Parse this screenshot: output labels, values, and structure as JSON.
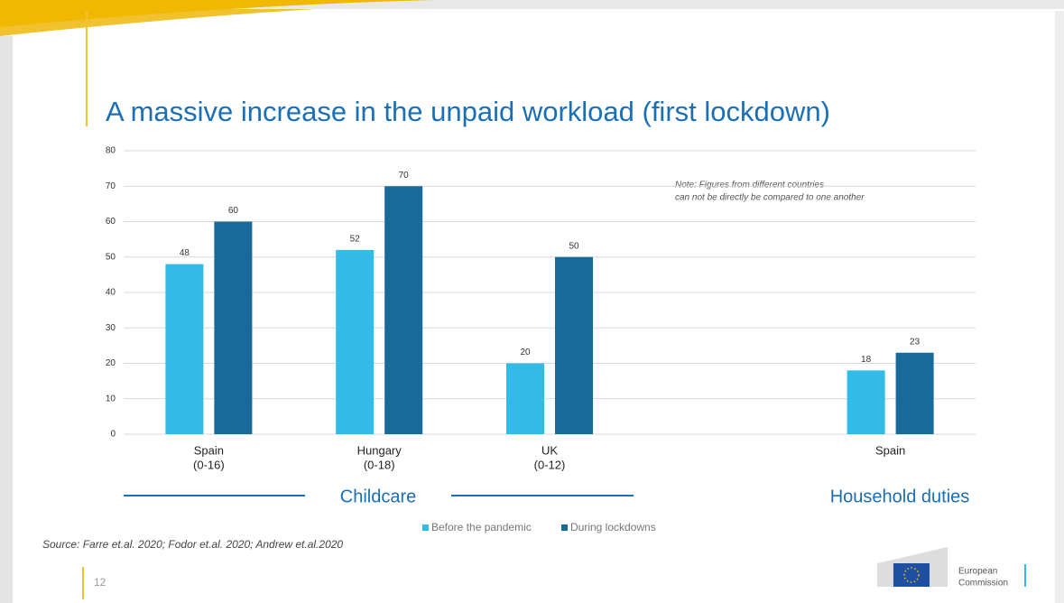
{
  "chart_data": {
    "type": "bar",
    "title": "A massive increase in the unpaid workload (first lockdown)",
    "categories": [
      "Spain",
      "Hungary",
      "UK",
      null,
      "Spain"
    ],
    "category_sublabels": [
      "(0-16)",
      "(0-18)",
      "(0-12)",
      null,
      null
    ],
    "series": [
      {
        "name": "Before the pandemic",
        "color": "#33bbe8",
        "values": [
          48,
          52,
          20,
          null,
          18
        ]
      },
      {
        "name": "During lockdowns",
        "color": "#176a9a",
        "values": [
          60,
          70,
          50,
          null,
          23
        ]
      }
    ],
    "ylim": [
      0,
      80
    ],
    "yticks": [
      0,
      10,
      20,
      30,
      40,
      50,
      60,
      70,
      80
    ],
    "grid": true,
    "groups": [
      "Childcare",
      "Household duties"
    ],
    "note": [
      "Note: Figures from different countries",
      "can not be directly be compared to one another"
    ],
    "source": "Source: Farre et.al. 2020; Fodor et.al. 2020; Andrew et.al.2020"
  },
  "page_number": "12",
  "logo": [
    "European",
    "Commission"
  ]
}
